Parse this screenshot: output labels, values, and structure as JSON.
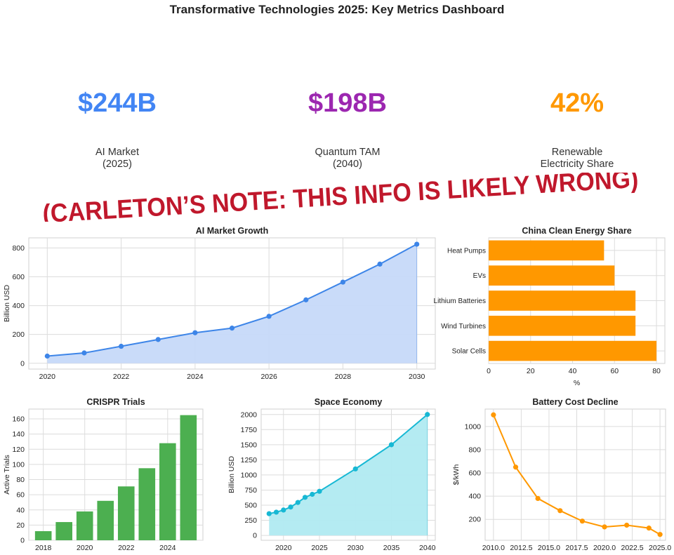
{
  "title": "Transformative Technologies 2025: Key Metrics Dashboard",
  "kpis": [
    {
      "value": "$244B",
      "label": "AI Market\n(2025)",
      "color": "#4285f4"
    },
    {
      "value": "$198B",
      "label": "Quantum TAM\n(2040)",
      "color": "#9c27b0"
    },
    {
      "value": "42%",
      "label": "Renewable\nElectricity Share",
      "color": "#ff9800"
    }
  ],
  "note": {
    "text": "(CARLETON’S NOTE: THIS INFO IS LIKELY WRONG)",
    "color": "#c0182c"
  },
  "chart_data": [
    {
      "id": "ai",
      "type": "area",
      "title": "AI Market Growth",
      "xlabel": "",
      "ylabel": "Billion USD",
      "x": [
        2020,
        2021,
        2022,
        2023,
        2024,
        2025,
        2026,
        2027,
        2028,
        2029,
        2030
      ],
      "values": [
        50,
        72,
        118,
        165,
        212,
        244,
        326,
        440,
        563,
        688,
        826
      ],
      "xlim": [
        2019.5,
        2030.5
      ],
      "ylim": [
        -40,
        870
      ],
      "xticks": [
        2020,
        2022,
        2024,
        2026,
        2028,
        2030
      ],
      "xtick_labels": [
        "2020",
        "2022",
        "2024",
        "2026",
        "2028",
        "2030"
      ],
      "yticks": [
        0,
        200,
        400,
        600,
        800
      ],
      "ytick_labels": [
        "0",
        "200",
        "400",
        "600",
        "800"
      ],
      "color": "#3d85e8",
      "fill": "#c6d9f9",
      "grid": true
    },
    {
      "id": "china",
      "type": "bar",
      "orientation": "horizontal",
      "title": "China Clean Energy Share",
      "xlabel": "%",
      "ylabel": "",
      "categories": [
        "Solar Cells",
        "Wind Turbines",
        "Lithium Batteries",
        "EVs",
        "Heat Pumps"
      ],
      "values": [
        80,
        70,
        70,
        60,
        55
      ],
      "xlim": [
        0,
        84
      ],
      "xticks": [
        0,
        20,
        40,
        60,
        80
      ],
      "xtick_labels": [
        "0",
        "20",
        "40",
        "60",
        "80"
      ],
      "color": "#ff9800",
      "grid": true
    },
    {
      "id": "crispr",
      "type": "bar",
      "title": "CRISPR Trials",
      "xlabel": "",
      "ylabel": "Active Trials",
      "x": [
        2018,
        2019,
        2020,
        2021,
        2022,
        2023,
        2024,
        2025
      ],
      "values": [
        12,
        24,
        38,
        52,
        71,
        95,
        128,
        165
      ],
      "xlim": [
        2017.3,
        2025.7
      ],
      "ylim": [
        0,
        173
      ],
      "xticks": [
        2018,
        2020,
        2022,
        2024
      ],
      "xtick_labels": [
        "2018",
        "2020",
        "2022",
        "2024"
      ],
      "yticks": [
        0,
        20,
        40,
        60,
        80,
        100,
        120,
        140,
        160
      ],
      "ytick_labels": [
        "0",
        "20",
        "40",
        "60",
        "80",
        "100",
        "120",
        "140",
        "160"
      ],
      "color": "#4caf50",
      "grid": true
    },
    {
      "id": "space",
      "type": "area",
      "title": "Space Economy",
      "xlabel": "",
      "ylabel": "Billion USD",
      "x": [
        2018,
        2019,
        2020,
        2021,
        2022,
        2023,
        2024,
        2025,
        2030,
        2035,
        2040
      ],
      "values": [
        360,
        385,
        420,
        470,
        545,
        630,
        680,
        730,
        1100,
        1500,
        2000
      ],
      "xlim": [
        2016.9,
        2041.1
      ],
      "ylim": [
        -80,
        2090
      ],
      "xticks": [
        2020,
        2025,
        2030,
        2035,
        2040
      ],
      "xtick_labels": [
        "2020",
        "2025",
        "2030",
        "2035",
        "2040"
      ],
      "yticks": [
        0,
        250,
        500,
        750,
        1000,
        1250,
        1500,
        1750,
        2000
      ],
      "ytick_labels": [
        "0",
        "250",
        "500",
        "750",
        "1000",
        "1250",
        "1500",
        "1750",
        "2000"
      ],
      "color": "#17b8d4",
      "fill": "#b0eaf1",
      "grid": true
    },
    {
      "id": "battery",
      "type": "line",
      "title": "Battery Cost Decline",
      "xlabel": "",
      "ylabel": "$/kWh",
      "x": [
        2010,
        2012,
        2014,
        2016,
        2018,
        2020,
        2022,
        2024,
        2025
      ],
      "values": [
        1100,
        650,
        380,
        275,
        185,
        135,
        150,
        125,
        70
      ],
      "xlim": [
        2009.25,
        2025.5
      ],
      "ylim": [
        20,
        1150
      ],
      "xticks": [
        2010,
        2012.5,
        2015,
        2017.5,
        2020,
        2022.5,
        2025
      ],
      "xtick_labels": [
        "2010.0",
        "2012.5",
        "2015.0",
        "2017.5",
        "2020.0",
        "2022.5",
        "2025.0"
      ],
      "yticks": [
        200,
        400,
        600,
        800,
        1000
      ],
      "ytick_labels": [
        "200",
        "400",
        "600",
        "800",
        "1000"
      ],
      "color": "#ff9800",
      "grid": true
    }
  ]
}
